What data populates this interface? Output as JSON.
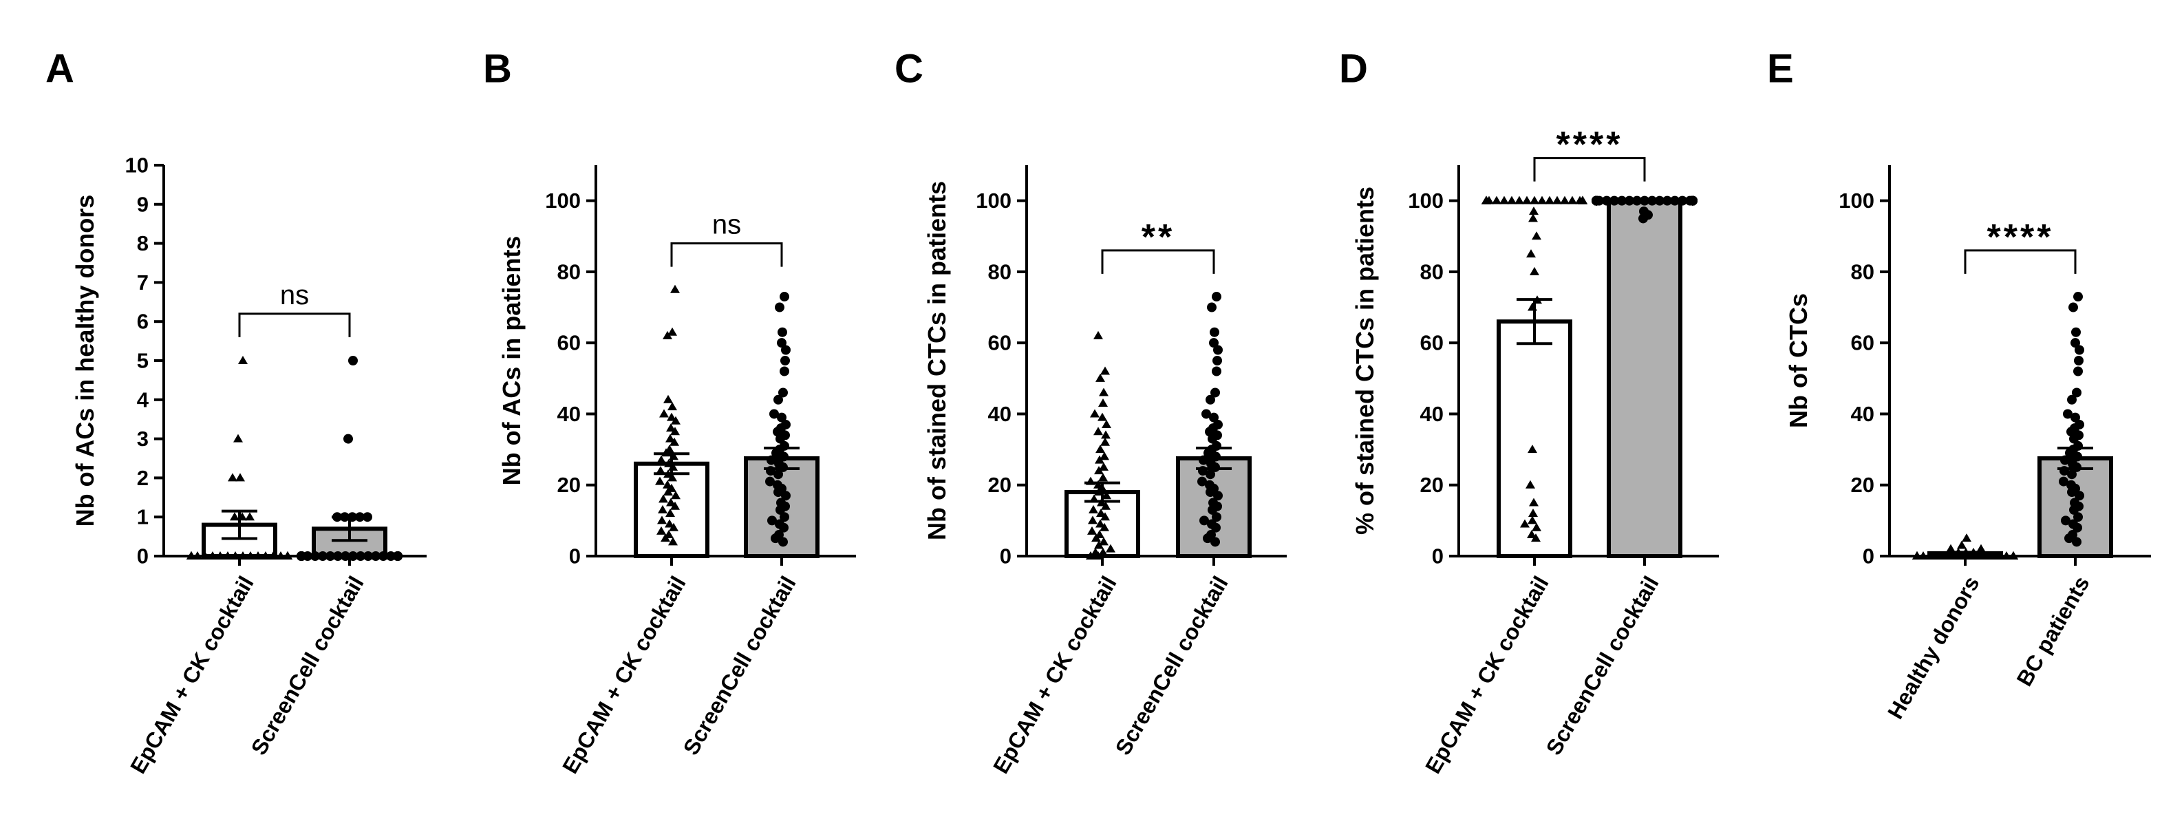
{
  "colors": {
    "open_bar": "#ffffff",
    "filled_bar": "#b0b0b0",
    "ink": "#000000"
  },
  "chart_data": [
    {
      "type": "bar",
      "panel": "A",
      "title": "",
      "xlabel": "",
      "ylabel": "Nb of ACs in healthy donors",
      "ylim": [
        0,
        10
      ],
      "yticks": [
        0,
        1,
        2,
        3,
        4,
        5,
        6,
        7,
        8,
        9,
        10
      ],
      "categories": [
        "EpCAM + CK cocktail",
        "ScreenCell cocktail"
      ],
      "series": [
        {
          "name": "EpCAM + CK cocktail",
          "mean": 0.8,
          "sem": 0.35,
          "fill": "open",
          "marker": "triangle",
          "points": [
            0,
            0,
            0,
            0,
            0,
            0,
            0,
            0,
            0,
            0,
            0,
            0,
            0,
            0,
            0,
            0,
            0,
            0,
            0,
            0,
            0,
            0,
            1,
            1,
            1,
            2,
            2,
            3,
            5
          ]
        },
        {
          "name": "ScreenCell cocktail",
          "mean": 0.7,
          "sem": 0.3,
          "fill": "filled",
          "marker": "circle",
          "points": [
            0,
            0,
            0,
            0,
            0,
            0,
            0,
            0,
            0,
            0,
            0,
            0,
            0,
            0,
            0,
            0,
            0,
            0,
            0,
            0,
            0,
            0,
            0,
            0,
            1,
            1,
            1,
            1,
            1,
            3,
            5
          ]
        }
      ],
      "comparison": {
        "label": "ns",
        "from": 0,
        "to": 1,
        "y": 6.2
      }
    },
    {
      "type": "bar",
      "panel": "B",
      "title": "",
      "xlabel": "",
      "ylabel": "Nb of ACs in patients",
      "ylim": [
        0,
        110
      ],
      "yticks": [
        0,
        20,
        40,
        60,
        80,
        100
      ],
      "categories": [
        "EpCAM + CK cocktail",
        "ScreenCell cocktail"
      ],
      "series": [
        {
          "name": "EpCAM + CK cocktail",
          "mean": 26,
          "sem": 2.8,
          "fill": "open",
          "marker": "triangle",
          "points": [
            4,
            5,
            6,
            7,
            8,
            9,
            10,
            12,
            13,
            14,
            15,
            16,
            17,
            18,
            19,
            20,
            21,
            22,
            23,
            24,
            25,
            26,
            27,
            28,
            29,
            30,
            32,
            33,
            35,
            36,
            38,
            39,
            40,
            42,
            44,
            62,
            63,
            75
          ]
        },
        {
          "name": "ScreenCell cocktail",
          "mean": 27.5,
          "sem": 2.9,
          "fill": "filled",
          "marker": "circle",
          "points": [
            4,
            5,
            6,
            8,
            9,
            10,
            11,
            13,
            14,
            15,
            17,
            18,
            19,
            20,
            21,
            23,
            24,
            25,
            26,
            27,
            28,
            29,
            30,
            31,
            33,
            34,
            35,
            36,
            37,
            39,
            40,
            44,
            46,
            52,
            55,
            58,
            60,
            63,
            70,
            73
          ]
        }
      ],
      "comparison": {
        "label": "ns",
        "from": 0,
        "to": 1,
        "y": 88
      }
    },
    {
      "type": "bar",
      "panel": "C",
      "title": "",
      "xlabel": "",
      "ylabel": "Nb of stained CTCs in patients",
      "ylim": [
        0,
        110
      ],
      "yticks": [
        0,
        20,
        40,
        60,
        80,
        100
      ],
      "categories": [
        "EpCAM + CK cocktail",
        "ScreenCell cocktail"
      ],
      "series": [
        {
          "name": "EpCAM + CK cocktail",
          "mean": 18,
          "sem": 2.6,
          "fill": "open",
          "marker": "triangle",
          "points": [
            0,
            0,
            1,
            1,
            2,
            3,
            4,
            5,
            6,
            7,
            8,
            9,
            10,
            11,
            12,
            13,
            14,
            15,
            16,
            17,
            18,
            19,
            20,
            21,
            22,
            24,
            25,
            27,
            28,
            30,
            32,
            34,
            35,
            37,
            39,
            40,
            43,
            46,
            50,
            52,
            62
          ]
        },
        {
          "name": "ScreenCell cocktail",
          "mean": 27.5,
          "sem": 2.9,
          "fill": "filled",
          "marker": "circle",
          "points": [
            4,
            5,
            6,
            8,
            9,
            10,
            11,
            13,
            14,
            15,
            17,
            18,
            19,
            20,
            21,
            23,
            24,
            25,
            26,
            27,
            28,
            29,
            30,
            31,
            33,
            34,
            35,
            36,
            37,
            39,
            40,
            44,
            46,
            52,
            55,
            58,
            60,
            63,
            70,
            73
          ]
        }
      ],
      "comparison": {
        "label": "**",
        "from": 0,
        "to": 1,
        "y": 86
      }
    },
    {
      "type": "bar",
      "panel": "D",
      "title": "",
      "xlabel": "",
      "ylabel": "% of stained CTCs in patients",
      "ylim": [
        0,
        110
      ],
      "yticks": [
        0,
        20,
        40,
        60,
        80,
        100
      ],
      "categories": [
        "EpCAM + CK cocktail",
        "ScreenCell cocktail"
      ],
      "series": [
        {
          "name": "EpCAM + CK cocktail",
          "mean": 66,
          "sem": 6.2,
          "fill": "open",
          "marker": "triangle",
          "points": [
            100,
            100,
            100,
            100,
            100,
            100,
            100,
            100,
            100,
            100,
            100,
            100,
            100,
            100,
            100,
            100,
            100,
            100,
            100,
            100,
            100,
            100,
            97,
            95,
            90,
            85,
            80,
            72,
            70,
            30,
            20,
            15,
            12,
            10,
            9,
            8,
            6,
            5
          ]
        },
        {
          "name": "ScreenCell cocktail",
          "mean": 100,
          "sem": 0.4,
          "fill": "filled",
          "marker": "circle",
          "points": [
            100,
            100,
            100,
            100,
            100,
            100,
            100,
            100,
            100,
            100,
            100,
            100,
            100,
            100,
            100,
            100,
            100,
            100,
            100,
            100,
            100,
            100,
            100,
            100,
            100,
            100,
            100,
            100,
            100,
            100,
            100,
            100,
            100,
            100,
            100,
            100,
            100,
            97,
            96,
            95
          ]
        }
      ],
      "comparison": {
        "label": "****",
        "from": 0,
        "to": 1,
        "y": 112
      }
    },
    {
      "type": "bar",
      "panel": "E",
      "title": "",
      "xlabel": "",
      "ylabel": "Nb of CTCs",
      "ylim": [
        0,
        110
      ],
      "yticks": [
        0,
        20,
        40,
        60,
        80,
        100
      ],
      "categories": [
        "Healthy donors",
        "BC patients"
      ],
      "series": [
        {
          "name": "Healthy donors",
          "mean": 0.8,
          "sem": 0.3,
          "fill": "open",
          "marker": "triangle",
          "points": [
            0,
            0,
            0,
            0,
            0,
            0,
            0,
            0,
            0,
            0,
            0,
            0,
            0,
            0,
            0,
            0,
            0,
            0,
            0,
            0,
            0,
            0,
            1,
            1,
            1,
            2,
            2,
            3,
            5
          ]
        },
        {
          "name": "BC patients",
          "mean": 27.5,
          "sem": 2.9,
          "fill": "filled",
          "marker": "circle",
          "points": [
            4,
            5,
            6,
            8,
            9,
            10,
            11,
            13,
            14,
            15,
            17,
            18,
            19,
            20,
            21,
            23,
            24,
            25,
            26,
            27,
            28,
            29,
            30,
            31,
            33,
            34,
            35,
            36,
            37,
            39,
            40,
            44,
            46,
            52,
            55,
            58,
            60,
            63,
            70,
            73
          ]
        }
      ],
      "comparison": {
        "label": "****",
        "from": 0,
        "to": 1,
        "y": 86
      }
    }
  ]
}
